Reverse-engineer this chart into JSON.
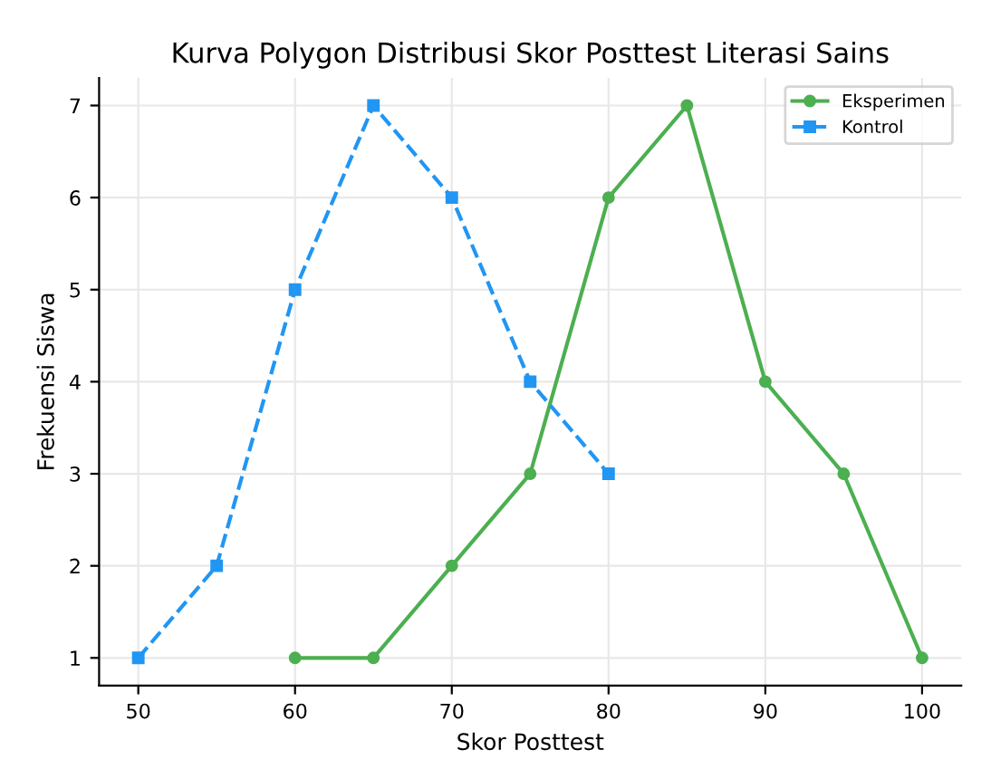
{
  "chart_data": {
    "type": "line",
    "title": "Kurva Polygon Distribusi Skor Posttest Literasi Sains",
    "xlabel": "Skor Posttest",
    "ylabel": "Frekuensi Siswa",
    "series": [
      {
        "name": "Eksperimen",
        "color": "#4caf50",
        "marker": "circle",
        "line_style": "solid",
        "x": [
          60,
          65,
          70,
          75,
          80,
          85,
          90,
          95,
          100
        ],
        "values": [
          1,
          1,
          2,
          3,
          6,
          7,
          4,
          3,
          1
        ]
      },
      {
        "name": "Kontrol",
        "color": "#2196f3",
        "marker": "square",
        "line_style": "dashed",
        "x": [
          50,
          55,
          60,
          65,
          70,
          75,
          80
        ],
        "values": [
          1,
          2,
          5,
          7,
          6,
          4,
          3
        ]
      }
    ],
    "xlim": [
      47.5,
      102.5
    ],
    "xticks": [
      50,
      60,
      70,
      80,
      90,
      100
    ],
    "ylim": [
      0.7,
      7.3
    ],
    "yticks": [
      1,
      2,
      3,
      4,
      5,
      6,
      7
    ],
    "grid": true,
    "legend": "top right"
  }
}
